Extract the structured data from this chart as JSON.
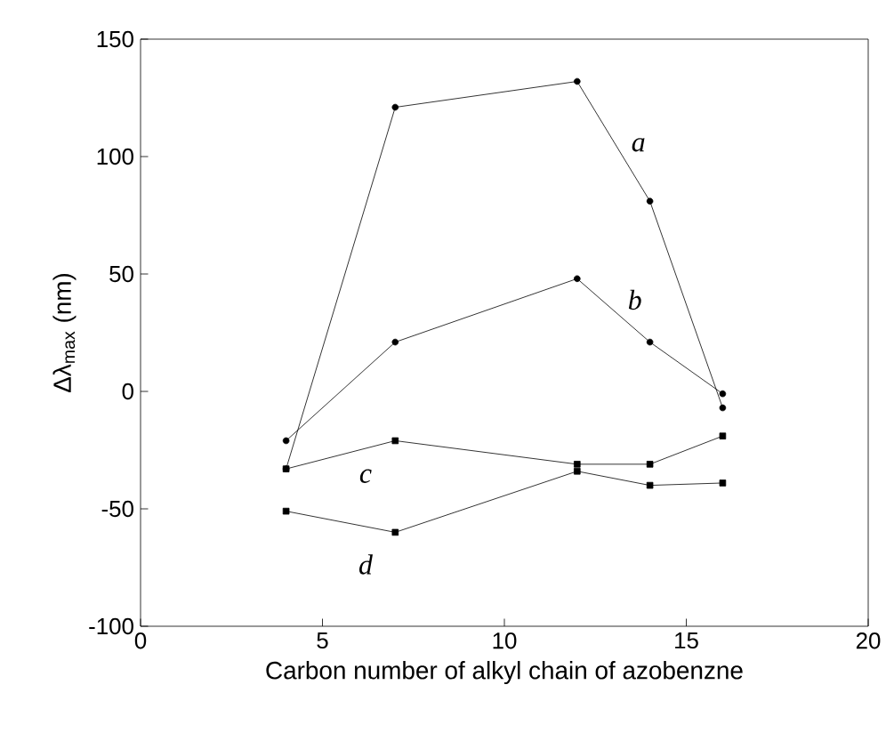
{
  "chart_data": {
    "type": "line",
    "xlabel": "Carbon number of alkyl chain of azobenzne",
    "ylabel": "Δλ$_{max}$ (nm)",
    "xlim": [
      0,
      20
    ],
    "ylim": [
      -100,
      150
    ],
    "xticks": [
      0,
      5,
      10,
      15,
      20
    ],
    "yticks": [
      -100,
      -50,
      0,
      50,
      100,
      150
    ],
    "grid": false,
    "series": [
      {
        "name": "a",
        "x": [
          4,
          7,
          12,
          14,
          16
        ],
        "values": [
          -33,
          121,
          132,
          81,
          -7
        ],
        "color": "#000000",
        "marker": "circle"
      },
      {
        "name": "b",
        "x": [
          4,
          7,
          12,
          14,
          16
        ],
        "values": [
          -21,
          21,
          48,
          21,
          -1
        ],
        "color": "#000000",
        "marker": "circle"
      },
      {
        "name": "c",
        "x": [
          4,
          7,
          12,
          14,
          16
        ],
        "values": [
          -33,
          -21,
          -31,
          -31,
          -19
        ],
        "color": "#000000",
        "marker": "square"
      },
      {
        "name": "d",
        "x": [
          4,
          7,
          12,
          14,
          16
        ],
        "values": [
          -51,
          -60,
          -34,
          -40,
          -39
        ],
        "color": "#000000",
        "marker": "square"
      }
    ]
  }
}
